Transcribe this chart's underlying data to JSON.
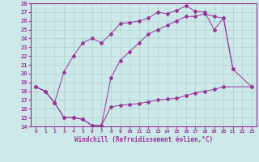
{
  "xlabel": "Windchill (Refroidissement éolien,°C)",
  "bg_color": "#cce8e8",
  "line_color": "#993399",
  "grid_color": "#aacccc",
  "xlim": [
    -0.5,
    23.5
  ],
  "ylim": [
    14,
    28
  ],
  "xticks": [
    0,
    1,
    2,
    3,
    4,
    5,
    6,
    7,
    8,
    9,
    10,
    11,
    12,
    13,
    14,
    15,
    16,
    17,
    18,
    19,
    20,
    21,
    22,
    23
  ],
  "yticks": [
    14,
    15,
    16,
    17,
    18,
    19,
    20,
    21,
    22,
    23,
    24,
    25,
    26,
    27,
    28
  ],
  "curve1_x": [
    0,
    1,
    2,
    3,
    4,
    5,
    6,
    7,
    8,
    9,
    10,
    11,
    12,
    13,
    14,
    15,
    16,
    17,
    18,
    19,
    20,
    21
  ],
  "curve1_y": [
    18.5,
    18.0,
    16.7,
    20.2,
    22.0,
    23.5,
    24.0,
    23.5,
    24.5,
    25.7,
    25.8,
    26.0,
    26.3,
    27.0,
    26.8,
    27.2,
    27.7,
    27.1,
    27.0,
    25.0,
    26.3,
    20.5
  ],
  "curve2_x": [
    0,
    1,
    2,
    3,
    4,
    5,
    6,
    7,
    8,
    9,
    10,
    11,
    12,
    13,
    14,
    15,
    16,
    17,
    18,
    19,
    20,
    21,
    23
  ],
  "curve2_y": [
    18.5,
    18.0,
    16.7,
    15.0,
    15.0,
    14.8,
    14.1,
    14.1,
    19.5,
    21.5,
    22.5,
    23.5,
    24.5,
    25.0,
    25.5,
    26.0,
    26.5,
    26.5,
    26.8,
    26.5,
    26.3,
    20.5,
    18.5
  ],
  "curve3_x": [
    0,
    1,
    2,
    3,
    4,
    5,
    6,
    7,
    8,
    9,
    10,
    11,
    12,
    13,
    14,
    15,
    16,
    17,
    18,
    19,
    20,
    23
  ],
  "curve3_y": [
    18.5,
    18.0,
    16.7,
    15.0,
    15.0,
    14.8,
    14.1,
    14.1,
    16.2,
    16.4,
    16.5,
    16.6,
    16.8,
    17.0,
    17.1,
    17.2,
    17.5,
    17.8,
    18.0,
    18.2,
    18.5,
    18.5
  ]
}
